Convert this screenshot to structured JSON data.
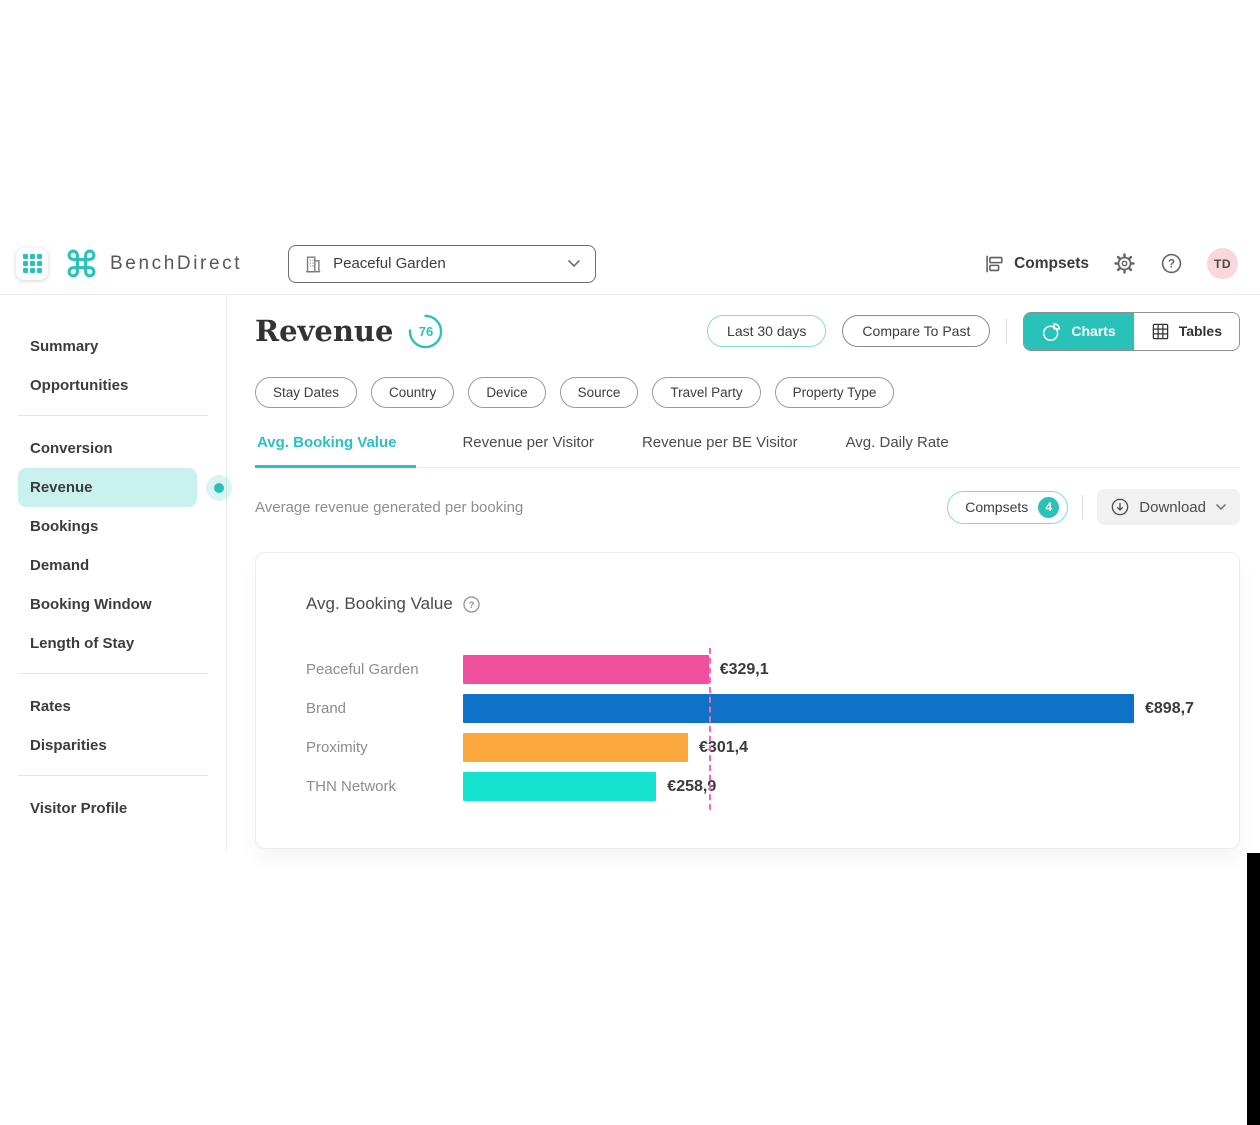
{
  "colors": {
    "teal": "#29c2b9",
    "tab_active": "#2bc0c4",
    "sidebar_highlight": "#c9f1ee",
    "avatar_bg": "#f8d8da",
    "bar_pink": "#f0509e",
    "bar_blue": "#0f72c8",
    "bar_orange": "#faa83c",
    "bar_cyan": "#16e2d0",
    "reference_pink": "#ef6cb0"
  },
  "header": {
    "brand": "BenchDirect",
    "property_selector": {
      "value": "Peaceful Garden"
    },
    "compsets_label": "Compsets",
    "avatar_initials": "TD"
  },
  "sidebar": {
    "groups": [
      {
        "items": [
          {
            "label": "Summary"
          },
          {
            "label": "Opportunities"
          }
        ]
      },
      {
        "items": [
          {
            "label": "Conversion"
          },
          {
            "label": "Revenue",
            "active": true
          },
          {
            "label": "Bookings"
          },
          {
            "label": "Demand"
          },
          {
            "label": "Booking Window"
          },
          {
            "label": "Length of Stay"
          }
        ]
      },
      {
        "items": [
          {
            "label": "Rates"
          },
          {
            "label": "Disparities"
          }
        ]
      },
      {
        "items": [
          {
            "label": "Visitor Profile"
          }
        ]
      }
    ]
  },
  "page": {
    "title": "Revenue",
    "score_badge": "76",
    "score_percent": 76,
    "range_label": "Last 30 days",
    "compare_label": "Compare To Past",
    "view_toggle": {
      "charts": "Charts",
      "tables": "Tables",
      "active": "charts"
    },
    "filters": [
      "Stay Dates",
      "Country",
      "Device",
      "Source",
      "Travel Party",
      "Property Type"
    ],
    "tabs": [
      {
        "label": "Avg. Booking Value",
        "active": true
      },
      {
        "label": "Revenue per Visitor",
        "active": false
      },
      {
        "label": "Revenue per BE Visitor",
        "active": false
      },
      {
        "label": "Avg. Daily Rate",
        "active": false
      }
    ],
    "subtitle": "Average revenue generated per booking",
    "compsets_button": {
      "label": "Compsets",
      "count": "4"
    },
    "download_label": "Download"
  },
  "chart_data": {
    "type": "bar",
    "orientation": "horizontal",
    "title": "Avg. Booking Value",
    "categories": [
      "Peaceful Garden",
      "Brand",
      "Proximity",
      "THN Network"
    ],
    "values": [
      329.1,
      898.7,
      301.4,
      258.9
    ],
    "value_labels": [
      "€329,1",
      "€898,7",
      "€301,4",
      "€258,9"
    ],
    "colors": [
      "#f0509e",
      "#0f72c8",
      "#faa83c",
      "#16e2d0"
    ],
    "unit": "EUR",
    "reference_line": {
      "value": 329.1,
      "color": "#ef6cb0",
      "style": "dashed",
      "meaning": "subject hotel value"
    },
    "grid": false,
    "legend": false
  }
}
